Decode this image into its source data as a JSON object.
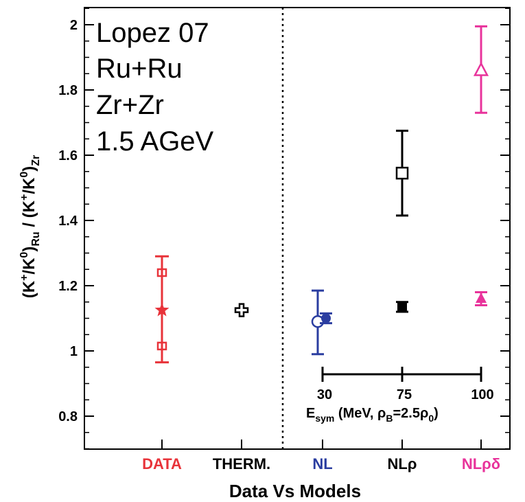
{
  "chart_data": {
    "type": "scatter",
    "xlabel": "Data Vs Models",
    "ylabel": {
      "main": "(K",
      "sup1": "+",
      "mid1": "/K",
      "sup2": "0",
      "mid2": ")",
      "sub1": "Ru",
      "mid3": " / (K",
      "sup3": "+",
      "mid4": "/K",
      "sup4": "0",
      "mid5": ")",
      "sub2": "Zr"
    },
    "ylim": [
      0.7,
      2.05
    ],
    "yticks": [
      "0.8",
      "1",
      "1.2",
      "1.4",
      "1.6",
      "1.8",
      "2"
    ],
    "categories": [
      {
        "label": "DATA",
        "color": "#e8333a"
      },
      {
        "label": "THERM.",
        "color": "#000000"
      },
      {
        "label": "NL",
        "color": "#2a3da0"
      },
      {
        "label": "NLρ",
        "color": "#000000"
      },
      {
        "label": "NLρδ",
        "color": "#e8339b"
      }
    ],
    "annotation": [
      "Lopez 07",
      "Ru+Ru",
      "Zr+Zr",
      "1.5 AGeV"
    ],
    "data_points": [
      {
        "category": "DATA",
        "marker": "star",
        "y": 1.125,
        "err_low": 0.965,
        "err_high": 1.29,
        "err2_low": 1.015,
        "err2_high": 1.24,
        "color": "#e8333a"
      },
      {
        "category": "THERM.",
        "marker": "cross-open",
        "y": 1.125,
        "color": "#000000"
      },
      {
        "category": "NL",
        "marker": "circle-open",
        "y": 1.09,
        "err_low": 0.99,
        "err_high": 1.185,
        "color": "#2a3da0"
      },
      {
        "category": "NL",
        "marker": "circle-filled",
        "y": 1.1,
        "err_low": 1.085,
        "err_high": 1.115,
        "color": "#2a3da0"
      },
      {
        "category": "NLρ",
        "marker": "square-open",
        "y": 1.545,
        "err_low": 1.415,
        "err_high": 1.675,
        "color": "#000000"
      },
      {
        "category": "NLρ",
        "marker": "square-filled",
        "y": 1.135,
        "err_low": 1.12,
        "err_high": 1.15,
        "color": "#000000"
      },
      {
        "category": "NLρδ",
        "marker": "triangle-open",
        "y": 1.86,
        "err_low": 1.73,
        "err_high": 1.995,
        "color": "#e8339b"
      },
      {
        "category": "NLρδ",
        "marker": "triangle-filled",
        "y": 1.16,
        "err_low": 1.14,
        "err_high": 1.18,
        "color": "#e8339b"
      }
    ],
    "inset_axis": {
      "ticks": [
        "30",
        "75",
        "100"
      ],
      "label": {
        "main": "E",
        "sub1": "sym",
        "mid1": " (MeV, ρ",
        "sub2": "B",
        "mid2": "=2.5ρ",
        "sub3": "0",
        "end": ")"
      }
    },
    "divider": "dotted vertical line between THERM. and NL"
  }
}
